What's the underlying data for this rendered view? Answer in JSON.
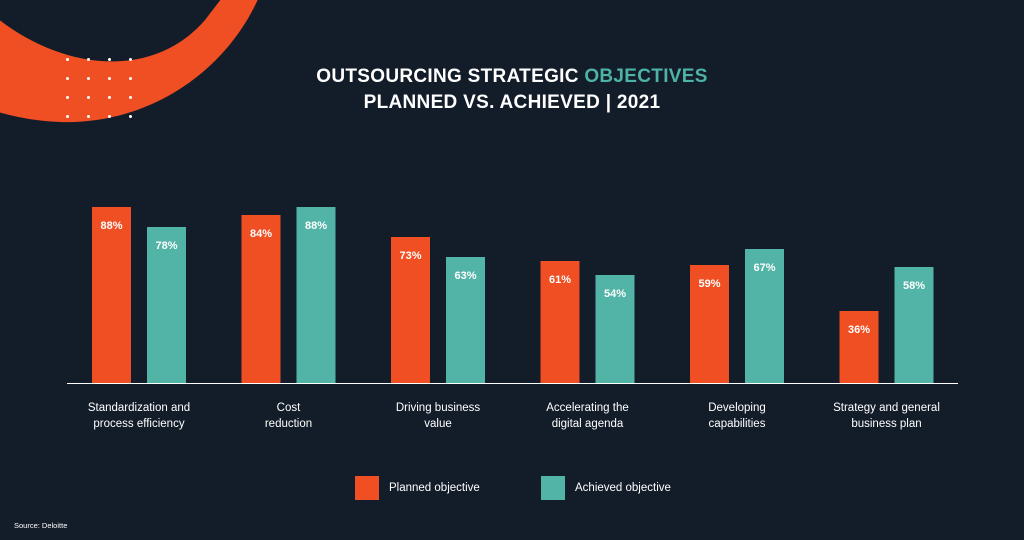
{
  "title": {
    "line1_prefix": "OUTSOURCING STRATEGIC ",
    "line1_accent": "OBJECTIVES",
    "line2": "PLANNED VS. ACHIEVED  |  2021"
  },
  "colors": {
    "background": "#131c29",
    "planned": "#f04e23",
    "achieved": "#52b3a7",
    "title_accent": "#4db3a6",
    "deco_arc": "#f04e23"
  },
  "chart_data": {
    "type": "bar",
    "title": "OUTSOURCING STRATEGIC OBJECTIVES PLANNED VS. ACHIEVED | 2021",
    "categories": [
      "Standardization and process efficiency",
      "Cost reduction",
      "Driving business value",
      "Accelerating the digital agenda",
      "Developing capabilities",
      "Strategy and general business plan"
    ],
    "category_lines": [
      [
        "Standardization and",
        "process efficiency"
      ],
      [
        "Cost",
        "reduction"
      ],
      [
        "Driving business",
        "value"
      ],
      [
        "Accelerating the",
        "digital agenda"
      ],
      [
        "Developing",
        "capabilities"
      ],
      [
        "Strategy and general",
        "business plan"
      ]
    ],
    "series": [
      {
        "name": "Planned objective",
        "values": [
          88,
          84,
          73,
          61,
          59,
          36
        ],
        "labels": [
          "88%",
          "84%",
          "73%",
          "61%",
          "59%",
          "36%"
        ]
      },
      {
        "name": "Achieved objective",
        "values": [
          78,
          88,
          63,
          54,
          67,
          58
        ],
        "labels": [
          "78%",
          "88%",
          "63%",
          "54%",
          "67%",
          "58%"
        ]
      }
    ],
    "unit": "%",
    "ylim": [
      0,
      100
    ],
    "grid": false,
    "legend_position": "bottom-center"
  },
  "legend": {
    "planned_label": "Planned objective",
    "achieved_label": "Achieved objective"
  },
  "source": "Source: Deloitte"
}
